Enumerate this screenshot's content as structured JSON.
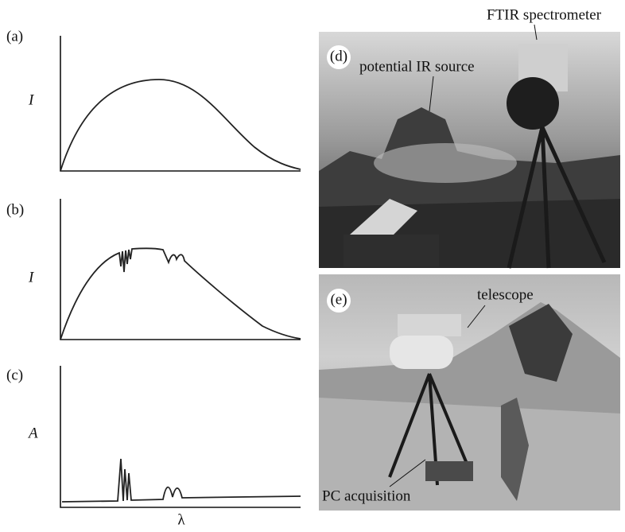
{
  "panels": [
    {
      "label": "(a)",
      "axis_label": "I"
    },
    {
      "label": "(b)",
      "axis_label": "I"
    },
    {
      "label": "(c)",
      "axis_label": "A"
    }
  ],
  "x_axis_label": "λ",
  "photos": [
    {
      "label": "(d)",
      "annotations": [
        "potential IR source",
        "FTIR spectrometer"
      ]
    },
    {
      "label": "(e)",
      "annotations": [
        "telescope",
        "PC acquisition"
      ]
    }
  ]
}
